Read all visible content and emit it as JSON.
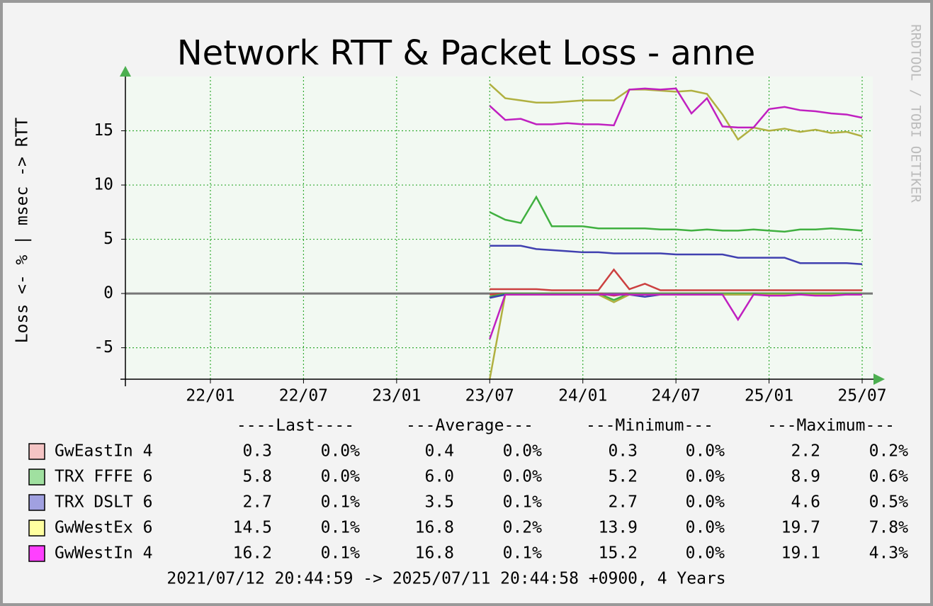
{
  "chart_data": {
    "type": "line",
    "title": "Network RTT & Packet Loss - anne",
    "y_label": "Loss <- % | msec -> RTT",
    "watermark": "RRDTOOL / TOBI OETIKER",
    "ylim": [
      -7.9,
      20
    ],
    "yticks": [
      -5,
      0,
      5,
      10,
      15
    ],
    "xticks": [
      "22/01",
      "22/07",
      "23/01",
      "23/07",
      "24/01",
      "24/07",
      "25/01",
      "25/07"
    ],
    "grid": true,
    "x": [
      "23/07",
      "23/08",
      "23/09",
      "23/10",
      "23/11",
      "23/12",
      "24/01",
      "24/02",
      "24/03",
      "24/04",
      "24/05",
      "24/06",
      "24/07",
      "24/08",
      "24/09",
      "24/10",
      "24/11",
      "24/12",
      "25/01",
      "25/02",
      "25/03",
      "25/04",
      "25/05",
      "25/06",
      "25/07"
    ],
    "series": [
      {
        "name": "GwEastIn 4",
        "color": "#cc4040",
        "legend_color": "#f4c4c4",
        "values": [
          0.4,
          0.4,
          0.4,
          0.4,
          0.3,
          0.3,
          0.3,
          0.3,
          2.2,
          0.4,
          0.9,
          0.3,
          0.3,
          0.3,
          0.3,
          0.3,
          0.3,
          0.3,
          0.3,
          0.3,
          0.3,
          0.3,
          0.3,
          0.3,
          0.3
        ],
        "loss": [
          -0.1,
          0,
          0,
          0,
          0,
          0,
          0,
          0,
          -0.2,
          0,
          0,
          0,
          0,
          0,
          0,
          0,
          0,
          0,
          0,
          0,
          0,
          0,
          0,
          0,
          0
        ]
      },
      {
        "name": "TRX FFFE 6",
        "color": "#40b040",
        "legend_color": "#a0e0a0",
        "values": [
          7.5,
          6.8,
          6.5,
          8.9,
          6.2,
          6.2,
          6.2,
          6.0,
          6.0,
          6.0,
          6.0,
          5.9,
          5.9,
          5.8,
          5.9,
          5.8,
          5.8,
          5.9,
          5.8,
          5.7,
          5.9,
          5.9,
          6.0,
          5.9,
          5.8
        ],
        "loss": [
          -0.3,
          0,
          0,
          0,
          0,
          0,
          0,
          0,
          -0.6,
          0,
          0,
          0,
          0,
          0,
          0,
          0,
          0,
          0,
          0,
          0,
          0,
          0,
          0,
          0,
          0
        ]
      },
      {
        "name": "TRX DSLT 6",
        "color": "#4040b0",
        "legend_color": "#a0a0e0",
        "values": [
          4.4,
          4.4,
          4.4,
          4.1,
          4.0,
          3.9,
          3.8,
          3.8,
          3.7,
          3.7,
          3.7,
          3.7,
          3.6,
          3.6,
          3.6,
          3.6,
          3.3,
          3.3,
          3.3,
          3.3,
          2.8,
          2.8,
          2.8,
          2.8,
          2.7
        ],
        "loss": [
          -0.4,
          -0.1,
          -0.1,
          -0.1,
          -0.1,
          -0.1,
          -0.1,
          -0.1,
          -0.1,
          -0.1,
          -0.3,
          -0.1,
          -0.1,
          -0.1,
          -0.1,
          -0.1,
          -0.1,
          -0.1,
          -0.1,
          -0.1,
          -0.1,
          -0.1,
          -0.1,
          -0.1,
          -0.1
        ]
      },
      {
        "name": "GwWestEx 6",
        "color": "#b0b040",
        "legend_color": "#ffffa0",
        "values": [
          19.3,
          18.0,
          17.8,
          17.6,
          17.6,
          17.7,
          17.8,
          17.8,
          17.8,
          18.8,
          18.8,
          18.7,
          18.6,
          18.7,
          18.4,
          16.5,
          14.2,
          15.3,
          15.0,
          15.2,
          14.9,
          15.1,
          14.8,
          14.9,
          14.5
        ],
        "loss": [
          -7.9,
          -0.1,
          -0.1,
          -0.1,
          -0.1,
          -0.1,
          -0.1,
          -0.1,
          -0.8,
          -0.1,
          -0.1,
          -0.1,
          -0.1,
          -0.1,
          -0.1,
          -0.1,
          -0.1,
          -0.1,
          -0.1,
          -0.1,
          -0.1,
          -0.1,
          -0.1,
          -0.1,
          -0.1
        ]
      },
      {
        "name": "GwWestIn 4",
        "color": "#c020c0",
        "legend_color": "#ff40ff",
        "values": [
          17.3,
          16.0,
          16.1,
          15.6,
          15.6,
          15.7,
          15.6,
          15.6,
          15.5,
          18.8,
          18.9,
          18.8,
          18.9,
          16.6,
          18.0,
          15.4,
          15.3,
          15.3,
          17.0,
          17.2,
          16.9,
          16.8,
          16.6,
          16.5,
          16.2
        ],
        "loss": [
          -4.2,
          -0.1,
          -0.1,
          -0.1,
          -0.1,
          -0.1,
          -0.1,
          -0.1,
          -0.1,
          -0.1,
          -0.1,
          -0.1,
          -0.1,
          -0.1,
          -0.1,
          -0.1,
          -2.4,
          -0.1,
          -0.2,
          -0.2,
          -0.1,
          -0.2,
          -0.2,
          -0.1,
          -0.1
        ]
      }
    ],
    "legend": {
      "headers": [
        "----Last----",
        "---Average---",
        "---Minimum---",
        "---Maximum---"
      ],
      "rows": [
        [
          "0.3",
          "0.0%",
          "0.4",
          "0.0%",
          "0.3",
          "0.0%",
          "2.2",
          "0.2%"
        ],
        [
          "5.8",
          "0.0%",
          "6.0",
          "0.0%",
          "5.2",
          "0.0%",
          "8.9",
          "0.6%"
        ],
        [
          "2.7",
          "0.1%",
          "3.5",
          "0.1%",
          "2.7",
          "0.0%",
          "4.6",
          "0.5%"
        ],
        [
          "14.5",
          "0.1%",
          "16.8",
          "0.2%",
          "13.9",
          "0.0%",
          "19.7",
          "7.8%"
        ],
        [
          "16.2",
          "0.1%",
          "16.8",
          "0.1%",
          "15.2",
          "0.0%",
          "19.1",
          "4.3%"
        ]
      ]
    },
    "footer": "2021/07/12 20:44:59 -> 2025/07/11 20:44:58 +0900, 4 Years"
  }
}
